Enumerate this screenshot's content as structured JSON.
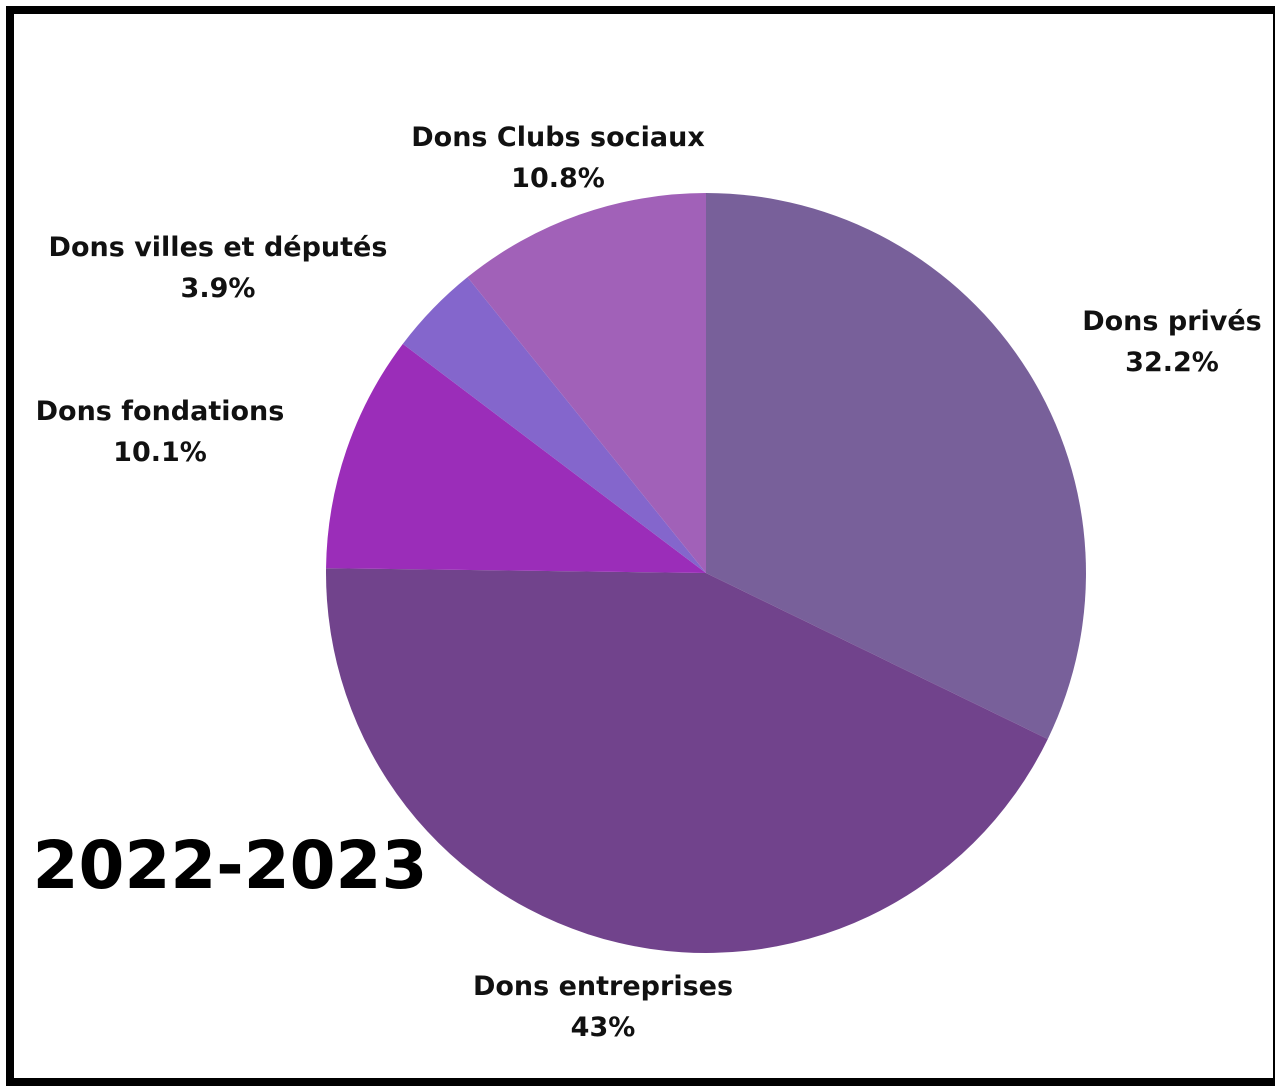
{
  "chart_data": {
    "type": "pie",
    "title": "2022-2023",
    "start_angle_deg": 0,
    "direction": "clockwise",
    "slices": [
      {
        "label": "Dons privés",
        "value": 32.2,
        "value_label": "32.2%",
        "color": "#78609a"
      },
      {
        "label": "Dons entreprises",
        "value": 43,
        "value_label": "43%",
        "color": "#71438c"
      },
      {
        "label": "Dons fondations",
        "value": 10.1,
        "value_label": "10.1%",
        "color": "#9b2db9"
      },
      {
        "label": "Dons villes et députés",
        "value": 3.9,
        "value_label": "3.9%",
        "color": "#8466cc"
      },
      {
        "label": "Dons Clubs sociaux",
        "value": 10.8,
        "value_label": "10.8%",
        "color": "#a161b8"
      }
    ]
  }
}
